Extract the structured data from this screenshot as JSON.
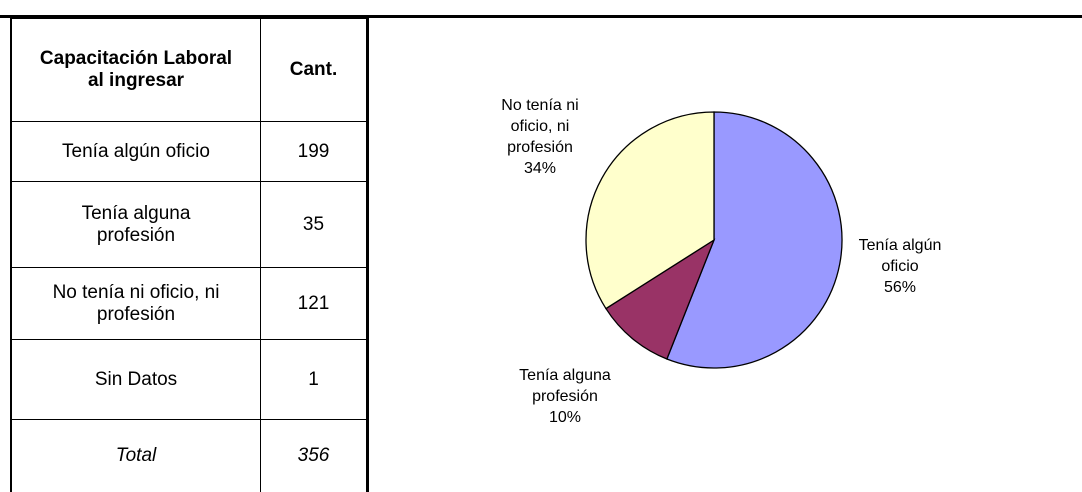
{
  "table": {
    "header": [
      "Capacitación Laboral al ingresar",
      "Cant."
    ],
    "rows": [
      [
        "Tenía algún oficio",
        "199"
      ],
      [
        "Tenía alguna profesión",
        "35"
      ],
      [
        "No tenía ni oficio, ni profesión",
        "121"
      ],
      [
        "Sin Datos",
        "1"
      ]
    ],
    "total": [
      "Total",
      "356"
    ]
  },
  "chart_data": {
    "type": "pie",
    "categories": [
      "Tenía algún oficio",
      "Tenía alguna profesión",
      "No tenía ni oficio, ni profesión"
    ],
    "values": [
      56,
      10,
      34
    ],
    "value_labels": [
      "56%",
      "10%",
      "34%"
    ],
    "colors": [
      "#9999ff",
      "#993366",
      "#ffffcc"
    ]
  }
}
